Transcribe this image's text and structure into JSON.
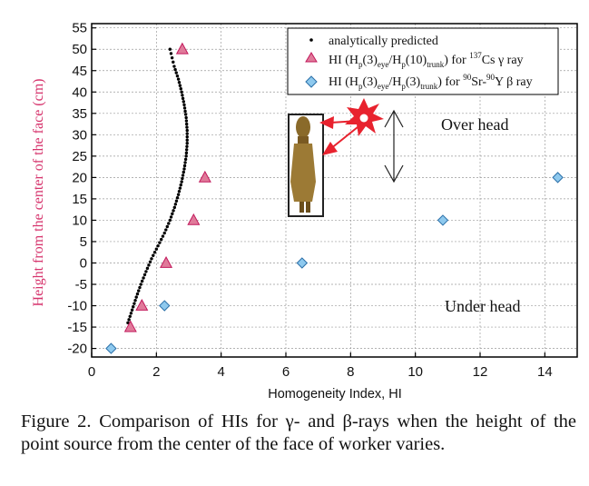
{
  "chart_data": {
    "type": "scatter",
    "xlabel": "Homogeneity Index, HI",
    "ylabel": "Height from the center of the face (cm)",
    "xlim": [
      0,
      15
    ],
    "ylim": [
      -22,
      56
    ],
    "xticks": [
      0,
      2,
      4,
      6,
      8,
      10,
      12,
      14
    ],
    "yticks": [
      -20,
      -15,
      -10,
      -5,
      0,
      5,
      10,
      15,
      20,
      25,
      30,
      35,
      40,
      45,
      50,
      55
    ],
    "grid": true,
    "legend_position": "top-right",
    "series": [
      {
        "name": "analytically predicted",
        "marker": "dot",
        "color": "#000000",
        "x": [
          1.12,
          1.25,
          1.38,
          1.52,
          1.68,
          1.85,
          2.05,
          2.25,
          2.42,
          2.56,
          2.68,
          2.78,
          2.86,
          2.92,
          2.95,
          2.95,
          2.92,
          2.86,
          2.78,
          2.68,
          2.55,
          2.42
        ],
        "y": [
          -14,
          -11,
          -8,
          -5,
          -2,
          1,
          4,
          7,
          10,
          13,
          16,
          19,
          22,
          25,
          28,
          31,
          34,
          37,
          40,
          43,
          46,
          50
        ]
      },
      {
        "name_parts": [
          "HI (H",
          "p",
          "(3)",
          "eye",
          "/H",
          "p",
          "(10)",
          "trunk",
          ") for ",
          "137",
          "Cs γ ray"
        ],
        "marker": "triangle",
        "color": "#d6336c",
        "x": [
          2.8,
          3.5,
          3.15,
          2.3,
          1.55,
          1.2
        ],
        "y": [
          50,
          20,
          10,
          0,
          -10,
          -15
        ]
      },
      {
        "name_parts": [
          "HI (H",
          "p",
          "(3)",
          "eye",
          "/H",
          "p",
          "(3)",
          "trunk",
          ") for ",
          "90",
          "Sr-",
          "90",
          "Y β ray"
        ],
        "marker": "diamond",
        "color": "#4a90c8",
        "x": [
          14.4,
          10.85,
          6.5,
          2.25,
          0.6
        ],
        "y": [
          20,
          10,
          0,
          -10,
          -20
        ]
      }
    ],
    "annotations": {
      "over_head": "Over head",
      "under_head": "Under head"
    }
  },
  "colors": {
    "triangle_fill": "#e07a9a",
    "triangle_stroke": "#c2185b",
    "diamond_fill": "#8ec9ee",
    "diamond_stroke": "#2a6fa8",
    "ylabel": "#d6336c",
    "source_star": "#e8222e"
  },
  "caption": "Figure 2.  Comparison of HIs for γ- and β-rays when the height of the point source from the center of the face of worker varies."
}
